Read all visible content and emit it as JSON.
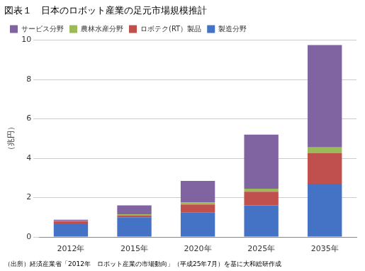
{
  "chart_data": {
    "type": "bar",
    "stacked": true,
    "title": "図表１　日本のロボット産業の足元市場規模推計",
    "ylabel": "（兆円）",
    "source": "（出所）経済産業省「2012年　ロボット産業の市場動向」（平成25年7月）を基に大和総研作成",
    "categories": [
      "2012年",
      "2015年",
      "2020年",
      "2025年",
      "2035年"
    ],
    "series": [
      {
        "name": "製造分野",
        "color": "#4472C4",
        "values": [
          0.65,
          1.0,
          1.25,
          1.6,
          2.7
        ]
      },
      {
        "name": "ロボテク(RT）製品",
        "color": "#C0504D",
        "values": [
          0.15,
          0.1,
          0.4,
          0.7,
          1.55
        ]
      },
      {
        "name": "農林水産分野",
        "color": "#9BBB59",
        "values": [
          0.02,
          0.05,
          0.1,
          0.15,
          0.3
        ]
      },
      {
        "name": "サービス分野",
        "color": "#8064A2",
        "values": [
          0.05,
          0.45,
          1.1,
          2.75,
          5.2
        ]
      }
    ],
    "ylim": [
      0,
      10
    ],
    "yticks": [
      0,
      2,
      4,
      6,
      8,
      10
    ],
    "grid": true,
    "legend": "upper left"
  }
}
